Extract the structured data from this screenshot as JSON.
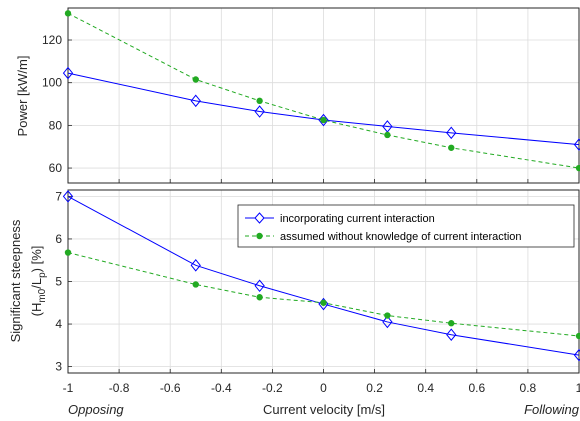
{
  "chart_data": [
    {
      "type": "line",
      "ylabel": "Power [kW/m]",
      "x": [
        -1,
        -0.5,
        -0.25,
        0,
        0.25,
        0.5,
        1
      ],
      "xlim": [
        -1,
        1
      ],
      "ylim": [
        53,
        135
      ],
      "yticks": [
        "60",
        "80",
        "100",
        "120"
      ],
      "grid": true,
      "series": [
        {
          "name": "incorporating current interaction",
          "color": "#0000ff",
          "marker": "diamond",
          "line": "solid",
          "values": [
            104.5,
            91.5,
            86.5,
            82.5,
            79.5,
            76.5,
            71
          ]
        },
        {
          "name": "assumed without knowledge of current interaction",
          "color": "#22aa22",
          "marker": "dot",
          "line": "dashed",
          "values": [
            132.5,
            101.5,
            91.5,
            82.5,
            75.5,
            69.5,
            60
          ]
        }
      ]
    },
    {
      "type": "line",
      "ylabel_line1": "Significant steepness",
      "ylabel_line2_prefix": "(H",
      "ylabel_sub1": "m0",
      "ylabel_mid": "/L",
      "ylabel_sub2": "p",
      "ylabel_suffix": ") [%]",
      "xlabel": "Current velocity [m/s]",
      "x": [
        -1,
        -0.5,
        -0.25,
        0,
        0.25,
        0.5,
        1
      ],
      "xticks": [
        "-1",
        "-0.8",
        "-0.6",
        "-0.4",
        "-0.2",
        "0",
        "0.2",
        "0.4",
        "0.6",
        "0.8",
        "1"
      ],
      "xlim": [
        -1,
        1
      ],
      "ylim": [
        2.85,
        7.15
      ],
      "yticks": [
        "3",
        "4",
        "5",
        "6",
        "7"
      ],
      "grid": true,
      "legend_placement": "top-right",
      "annotations": {
        "left": "Opposing",
        "right": "Following"
      },
      "series": [
        {
          "name": "incorporating current interaction",
          "color": "#0000ff",
          "marker": "diamond",
          "line": "solid",
          "values": [
            7.0,
            5.38,
            4.9,
            4.47,
            4.05,
            3.75,
            3.27
          ]
        },
        {
          "name": "assumed without knowledge of current interaction",
          "color": "#22aa22",
          "marker": "dot",
          "line": "dashed",
          "values": [
            5.68,
            4.93,
            4.63,
            4.5,
            4.2,
            4.02,
            3.72
          ]
        }
      ]
    }
  ]
}
